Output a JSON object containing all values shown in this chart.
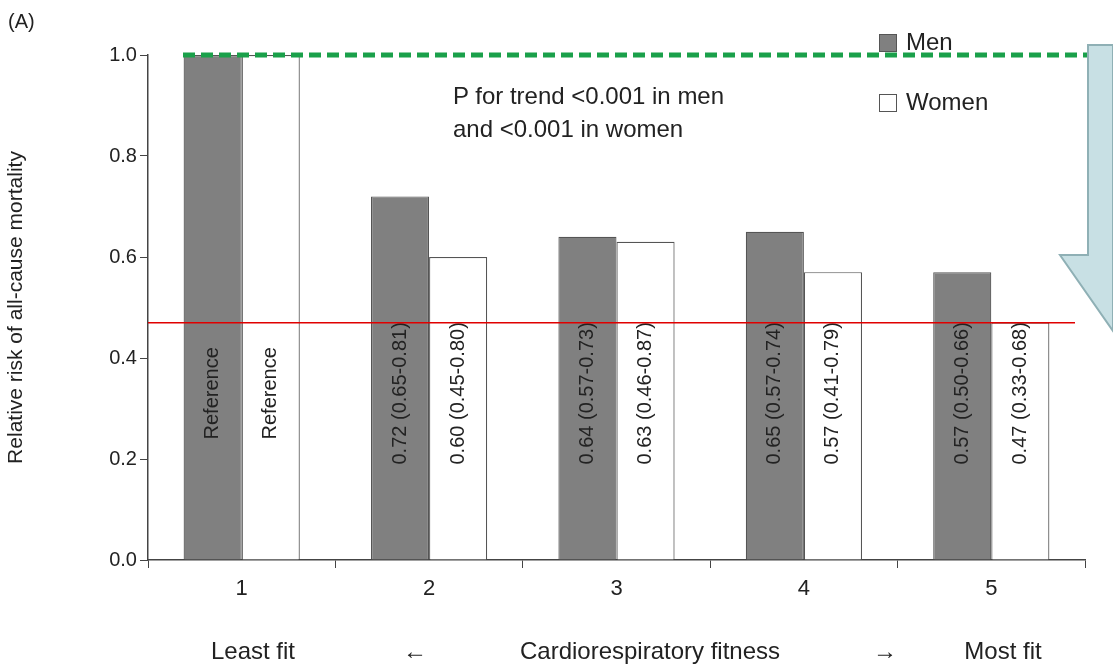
{
  "chart_data": {
    "type": "bar",
    "categories": [
      "1",
      "2",
      "3",
      "4",
      "5"
    ],
    "series": [
      {
        "name": "Men",
        "color": "#808080",
        "values": [
          1.0,
          0.72,
          0.64,
          0.65,
          0.57
        ],
        "value_labels": [
          "Reference",
          "0.72 (0.65-0.81)",
          "0.64 (0.57-0.73)",
          "0.65 (0.57-0.74)",
          "0.57 (0.50-0.66)"
        ]
      },
      {
        "name": "Women",
        "color": "#ffffff",
        "values": [
          1.0,
          0.6,
          0.63,
          0.57,
          0.47
        ],
        "value_labels": [
          "Reference",
          "0.60 (0.45-0.80)",
          "0.63 (0.46-0.87)",
          "0.57 (0.41-0.79)",
          "0.47 (0.33-0.68)"
        ]
      }
    ],
    "ylabel": "Relative risk of all-cause mortality",
    "xlabel": "Cardiorespiratory fitness",
    "ylim": [
      0,
      1.0
    ],
    "yticks": [
      {
        "value": 0,
        "label": "0.0"
      },
      0.2,
      0.4,
      0.6,
      0.8,
      {
        "value": 1.0,
        "label": "1.0"
      }
    ],
    "annotations": [
      "(A)",
      "P for trend <0.001 in men\nand <0.001 in women",
      "Least fit",
      "←",
      "→",
      "Most fit"
    ],
    "ref_lines": [
      {
        "axis": "y",
        "value": 1.0,
        "color": "#1aa04a",
        "line_style": "dashed"
      },
      {
        "axis": "y",
        "value": 0.47,
        "color": "#e00000",
        "line_style": "solid"
      }
    ],
    "legend": "top right",
    "grid": false
  }
}
